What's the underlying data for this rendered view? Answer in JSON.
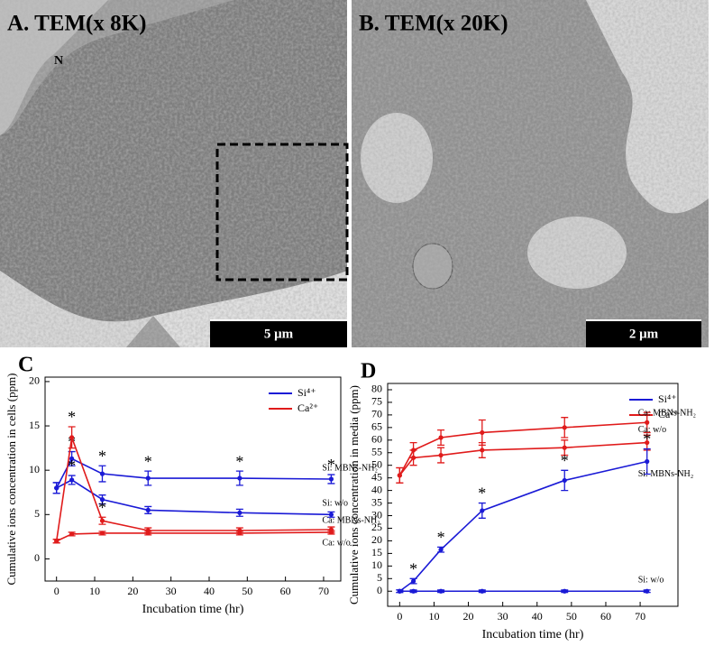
{
  "panels": [
    {
      "label": "A. TEM(x 8K)",
      "nucleus": "N",
      "scale": "5 μm"
    },
    {
      "label": "B. TEM(x 20K)",
      "scale": "2 μm"
    }
  ],
  "chart_data": [
    {
      "type": "line",
      "panel": "C",
      "ylabel": "Cumulative ions concentration in cells (ppm)",
      "xlabel": "Incubation time (hr)",
      "x": [
        0,
        4,
        12,
        24,
        48,
        72
      ],
      "xlim": [
        -3,
        74.5
      ],
      "xticks": [
        0,
        10,
        20,
        30,
        40,
        50,
        60,
        70
      ],
      "ylim": [
        -2.5,
        20.5
      ],
      "yticks": [
        0,
        5,
        10,
        15,
        20
      ],
      "legend": [
        {
          "name": "Si⁴⁺",
          "color": "#1a1ad6"
        },
        {
          "name": "Ca²⁺",
          "color": "#e01b1b"
        }
      ],
      "series": [
        {
          "name": "Si: MBNs-NH₂",
          "color": "#1a1ad6",
          "values": [
            8.0,
            11.3,
            9.6,
            9.1,
            9.1,
            9.0
          ],
          "errors": [
            0.6,
            0.8,
            0.9,
            0.8,
            0.8,
            0.5
          ],
          "significance": [
            null,
            "*",
            "*",
            "*",
            "*",
            "*"
          ]
        },
        {
          "name": "Si: w/o",
          "color": "#1a1ad6",
          "values": [
            8.0,
            8.9,
            6.7,
            5.5,
            5.2,
            5.0
          ],
          "errors": [
            0.6,
            0.5,
            0.5,
            0.4,
            0.4,
            0.3
          ],
          "significance": [
            null,
            "*",
            null,
            null,
            null,
            null
          ]
        },
        {
          "name": "Ca: MBNs-NH₂",
          "color": "#e01b1b",
          "values": [
            2.0,
            13.7,
            4.3,
            3.2,
            3.2,
            3.3
          ],
          "errors": [
            0.2,
            1.2,
            0.4,
            0.3,
            0.3,
            0.3
          ],
          "significance": [
            null,
            "*",
            "*",
            null,
            null,
            null
          ]
        },
        {
          "name": "Ca: w/o",
          "color": "#e01b1b",
          "values": [
            2.0,
            2.8,
            2.9,
            2.9,
            2.9,
            3.0
          ],
          "errors": [
            0.2,
            0.2,
            0.2,
            0.2,
            0.2,
            0.2
          ],
          "significance": [
            null,
            null,
            null,
            null,
            null,
            null
          ]
        }
      ]
    },
    {
      "type": "line",
      "panel": "D",
      "ylabel": "Cumulative ions concentration in media (ppm)",
      "xlabel": "Incubation time (hr)",
      "x": [
        0,
        4,
        12,
        24,
        48,
        72
      ],
      "xlim": [
        -3.5,
        81
      ],
      "xticks": [
        0,
        10,
        20,
        30,
        40,
        50,
        60,
        70
      ],
      "ylim": [
        -6,
        82.5
      ],
      "yticks": [
        0,
        5,
        10,
        15,
        20,
        25,
        30,
        35,
        40,
        45,
        50,
        55,
        60,
        65,
        70,
        75,
        80
      ],
      "legend": [
        {
          "name": "Si⁴⁺",
          "color": "#1a1ad6"
        },
        {
          "name": "Ca²⁺",
          "color": "#e01b1b"
        }
      ],
      "series": [
        {
          "name": "Ca: MBNs-NH₂",
          "color": "#e01b1b",
          "values": [
            46,
            56,
            61,
            63,
            65,
            67
          ],
          "errors": [
            3,
            3,
            3,
            5,
            4,
            4
          ],
          "significance": [
            null,
            null,
            null,
            null,
            null,
            null
          ]
        },
        {
          "name": "Ca: w/o",
          "color": "#e01b1b",
          "values": [
            46,
            53,
            54,
            56,
            57,
            59
          ],
          "errors": [
            3,
            3,
            3,
            3,
            3,
            3
          ],
          "significance": [
            null,
            null,
            null,
            null,
            null,
            null
          ]
        },
        {
          "name": "Si: MBNs-NH₂",
          "color": "#1a1ad6",
          "values": [
            0,
            4,
            16.5,
            32,
            44,
            51.5
          ],
          "errors": [
            0.5,
            1,
            1,
            3,
            4,
            5
          ],
          "significance": [
            null,
            "*",
            "*",
            "*",
            "*",
            "*"
          ]
        },
        {
          "name": "Si: w/o",
          "color": "#1a1ad6",
          "values": [
            0,
            0,
            0,
            0,
            0,
            0
          ],
          "errors": [
            0.5,
            0.5,
            0.5,
            0.5,
            0.5,
            0.5
          ],
          "significance": [
            null,
            null,
            null,
            null,
            null,
            null
          ]
        }
      ]
    }
  ]
}
